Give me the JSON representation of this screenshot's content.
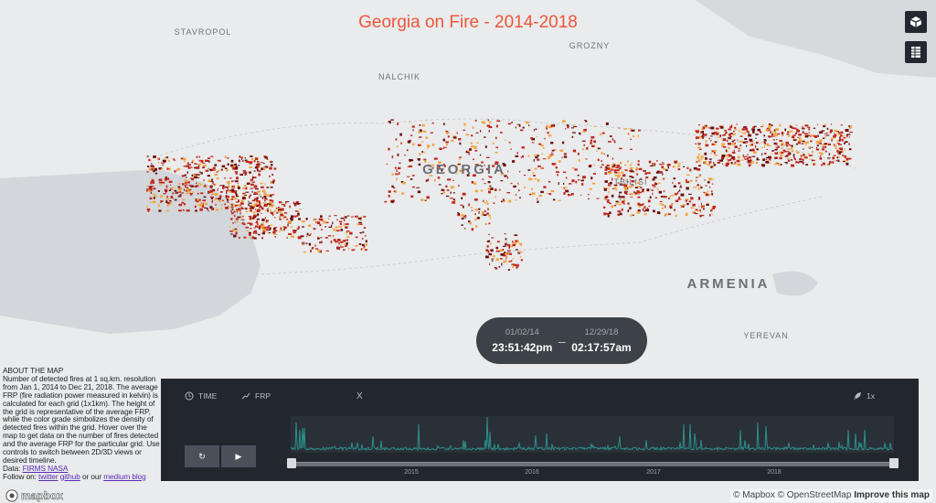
{
  "title": "Georgia on Fire - 2014-2018",
  "map_labels": {
    "stavropol": "STAVROPOL",
    "grozny": "GROZNY",
    "nalchik": "NALCHIK",
    "georgia": "GEORGIA",
    "tbilisi": "TBILISI",
    "armenia": "ARMENIA",
    "yerevan": "YEREVAN"
  },
  "controls": {
    "view_toggle_icon": "cube-3d-icon",
    "table_icon": "table-icon"
  },
  "time_range": {
    "start_date": "01/02/14",
    "start_time": "23:51:42pm",
    "separator": "–",
    "end_date": "12/29/18",
    "end_time": "02:17:57am"
  },
  "about": {
    "heading": "ABOUT THE MAP",
    "body": "Number of detected fires at 1 sq.km. resolution from Jan 1, 2014 to Dec 21, 2018. The average FRP (fire radiation power measured in kelvin) is calculated for each grid (1x1km). The height of the grid is representative of the average FRP, while the color grade simbolizes the density of detected fires within the grid. Hover over the map to get data on the number of fires detected and the average FRP for the particular grid. Use controls to switch between 2D/3D views or desired timeline.",
    "data_label": "Data:",
    "data_link": "FIRMS NASA",
    "follow_label": "Follow on:",
    "twitter": "twitter",
    "github": "github",
    "or_our": "or our",
    "medium": "medium blog"
  },
  "timeline": {
    "time_tab": "TIME",
    "frp_tab": "FRP",
    "close": "X",
    "speed": "1x",
    "years": [
      "2015",
      "2016",
      "2017",
      "2018"
    ],
    "range_selected": [
      0,
      1
    ],
    "series_color": "#2a8f8a"
  },
  "brand": {
    "logo": "mapbox"
  },
  "attribution": {
    "mapbox": "© Mapbox",
    "osm": "© OpenStreetMap",
    "improve": "Improve this map"
  },
  "colors": {
    "title": "#f0553a",
    "fire_dark": "#6b0a0a",
    "fire_mid": "#c0261b",
    "fire_light": "#f3a33a"
  }
}
